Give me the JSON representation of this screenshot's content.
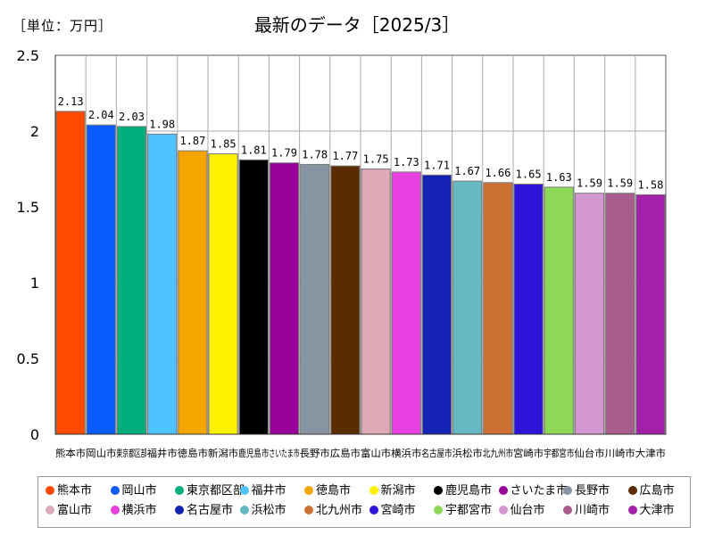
{
  "header": {
    "unit": "［単位：万円］",
    "title": "最新のデータ［2025/3］"
  },
  "chart_data": {
    "type": "bar",
    "title": "最新のデータ［2025/3］",
    "ylabel": "［単位：万円］",
    "xlabel": "",
    "ylim": [
      0,
      2.5
    ],
    "yticks": [
      "0",
      "0.5",
      "1",
      "1.5",
      "2",
      "2.5"
    ],
    "ytick_values": [
      0,
      0.5,
      1,
      1.5,
      2,
      2.5
    ],
    "grid": true,
    "legend_position": "bottom",
    "categories": [
      "熊本市",
      "岡山市",
      "東京都区部",
      "福井市",
      "徳島市",
      "新潟市",
      "鹿児島市",
      "さいたま市",
      "長野市",
      "広島市",
      "富山市",
      "横浜市",
      "名古屋市",
      "浜松市",
      "北九州市",
      "宮崎市",
      "宇都宮市",
      "仙台市",
      "川崎市",
      "大津市"
    ],
    "values": [
      2.13,
      2.04,
      2.03,
      1.98,
      1.87,
      1.85,
      1.81,
      1.79,
      1.78,
      1.77,
      1.75,
      1.73,
      1.71,
      1.67,
      1.66,
      1.65,
      1.63,
      1.59,
      1.59,
      1.58
    ],
    "value_labels": [
      "2.13",
      "2.04",
      "2.03",
      "1.98",
      "1.87",
      "1.85",
      "1.81",
      "1.79",
      "1.78",
      "1.77",
      "1.75",
      "1.73",
      "1.71",
      "1.67",
      "1.66",
      "1.65",
      "1.63",
      "1.59",
      "1.59",
      "1.58"
    ],
    "colors": [
      "#ff4a00",
      "#0a5cff",
      "#00ad7c",
      "#4dc3ff",
      "#f5a500",
      "#fff200",
      "#000000",
      "#990099",
      "#8795a3",
      "#5a2c00",
      "#e0a9b8",
      "#e640e0",
      "#1423b3",
      "#66b8c2",
      "#cc7033",
      "#2e14d9",
      "#8dd957",
      "#d497d1",
      "#a85c8c",
      "#a320a8"
    ]
  }
}
